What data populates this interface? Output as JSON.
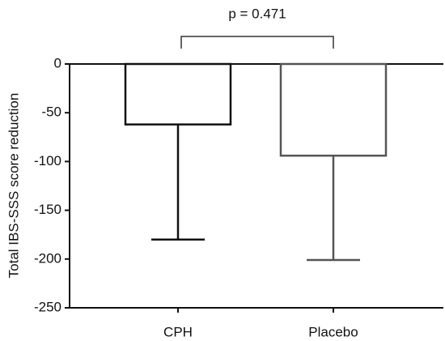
{
  "chart_data": {
    "type": "bar",
    "categories": [
      "CPH",
      "Placebo"
    ],
    "values": [
      -62,
      -94
    ],
    "errors": [
      118,
      107
    ],
    "colors": [
      "#111111",
      "#555555"
    ],
    "ylabel": "Total IBS-SSS score reduction",
    "annotation": "p = 0.471",
    "ylim": [
      -250,
      0
    ],
    "yticks": [
      0,
      -50,
      -100,
      -150,
      -200,
      -250
    ]
  }
}
